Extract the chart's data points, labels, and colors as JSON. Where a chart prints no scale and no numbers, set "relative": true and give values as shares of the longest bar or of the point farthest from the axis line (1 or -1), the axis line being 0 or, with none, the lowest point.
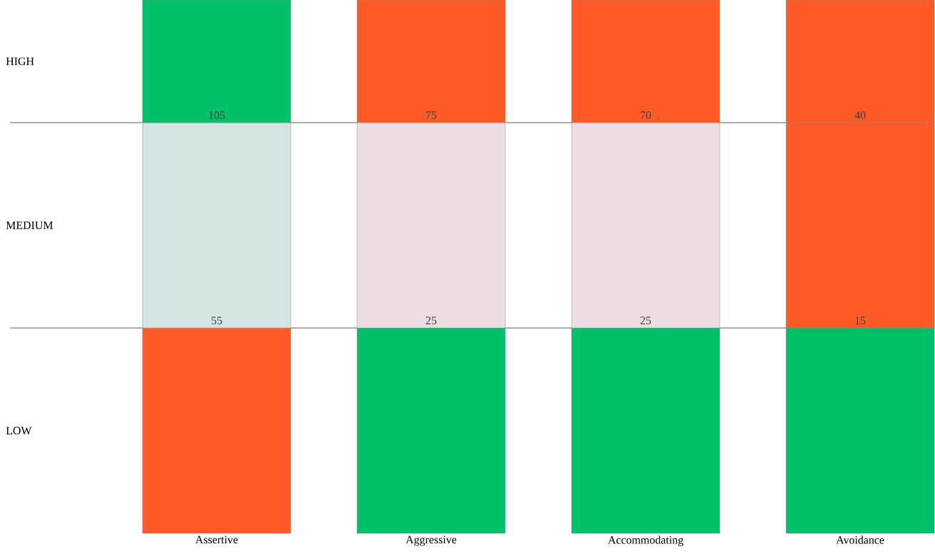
{
  "chart_data": {
    "type": "bar",
    "stacked": true,
    "relative": true,
    "categories": [
      "Assertive",
      "Aggressive",
      "Accommodating",
      "Avoidance"
    ],
    "series": [
      {
        "colors": [
          "#ff5a28",
          "#00c06a",
          "#00c06a",
          "#00c06a"
        ],
        "values": [
          0.385,
          0.385,
          0.385,
          0.385
        ]
      },
      {
        "colors": [
          "#d3e4e2",
          "#ecdde2",
          "#ecdde2",
          "#ff5a28"
        ],
        "values": [
          0.385,
          0.385,
          0.385,
          0.385
        ]
      },
      {
        "colors": [
          "#00c06a",
          "#ff5a28",
          "#ff5a28",
          "#ff5a28"
        ],
        "values": [
          0.23,
          0.23,
          0.23,
          0.23
        ]
      }
    ],
    "annotations": [
      "LOW",
      "MEDIUM",
      "HIGH",
      {
        "text": "55",
        "x": "Assertive",
        "y": 0.385
      },
      {
        "text": "25",
        "x": "Aggressive",
        "y": 0.385
      },
      {
        "text": "25",
        "x": "Accommodating",
        "y": 0.385
      },
      {
        "text": "15",
        "x": "Avoidance",
        "y": 0.385
      },
      {
        "text": "105",
        "x": "Assertive",
        "y": 0.77
      },
      {
        "text": "75",
        "x": "Aggressive",
        "y": 0.77
      },
      {
        "text": "70",
        "x": "Accommodating",
        "y": 0.77
      },
      {
        "text": "40",
        "x": "Avoidance",
        "y": 0.77
      }
    ],
    "ref_lines": [
      {
        "axis": "y",
        "value": 0.385,
        "color": "#333333"
      },
      {
        "axis": "y",
        "value": 0.77,
        "color": "#333333"
      }
    ]
  }
}
